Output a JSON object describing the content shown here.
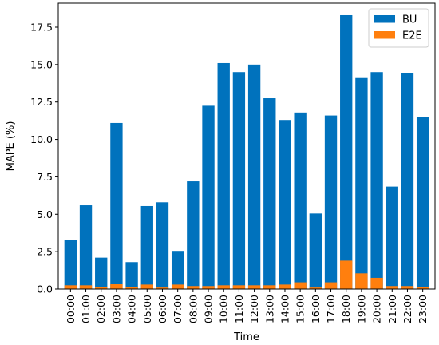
{
  "chart_data": {
    "type": "bar",
    "stacked": false,
    "categories": [
      "00:00",
      "01:00",
      "02:00",
      "03:00",
      "04:00",
      "05:00",
      "06:00",
      "07:00",
      "08:00",
      "09:00",
      "10:00",
      "11:00",
      "12:00",
      "13:00",
      "14:00",
      "15:00",
      "16:00",
      "17:00",
      "18:00",
      "19:00",
      "20:00",
      "21:00",
      "22:00",
      "23:00"
    ],
    "series": [
      {
        "name": "BU",
        "color": "#0072BD",
        "values": [
          3.3,
          5.6,
          2.1,
          11.1,
          1.8,
          5.55,
          5.8,
          2.55,
          7.2,
          12.25,
          15.1,
          14.5,
          15.0,
          12.75,
          11.3,
          11.8,
          5.05,
          11.6,
          18.3,
          14.1,
          14.5,
          6.85,
          14.45,
          11.5
        ]
      },
      {
        "name": "E2E",
        "color": "#FF7F0E",
        "values": [
          0.25,
          0.25,
          0.15,
          0.35,
          0.15,
          0.3,
          0.1,
          0.3,
          0.2,
          0.2,
          0.25,
          0.25,
          0.25,
          0.25,
          0.3,
          0.45,
          0.1,
          0.45,
          1.9,
          1.05,
          0.75,
          0.2,
          0.2,
          0.15
        ]
      }
    ],
    "xlabel": "Time",
    "ylabel": "MAPE (%)",
    "ylim": [
      0,
      19.1
    ],
    "yticks": [
      0.0,
      2.5,
      5.0,
      7.5,
      10.0,
      12.5,
      15.0,
      17.5
    ],
    "ytick_labels": [
      "0.0",
      "2.5",
      "5.0",
      "7.5",
      "10.0",
      "12.5",
      "15.0",
      "17.5"
    ],
    "grid": false,
    "legend": "top-right"
  }
}
